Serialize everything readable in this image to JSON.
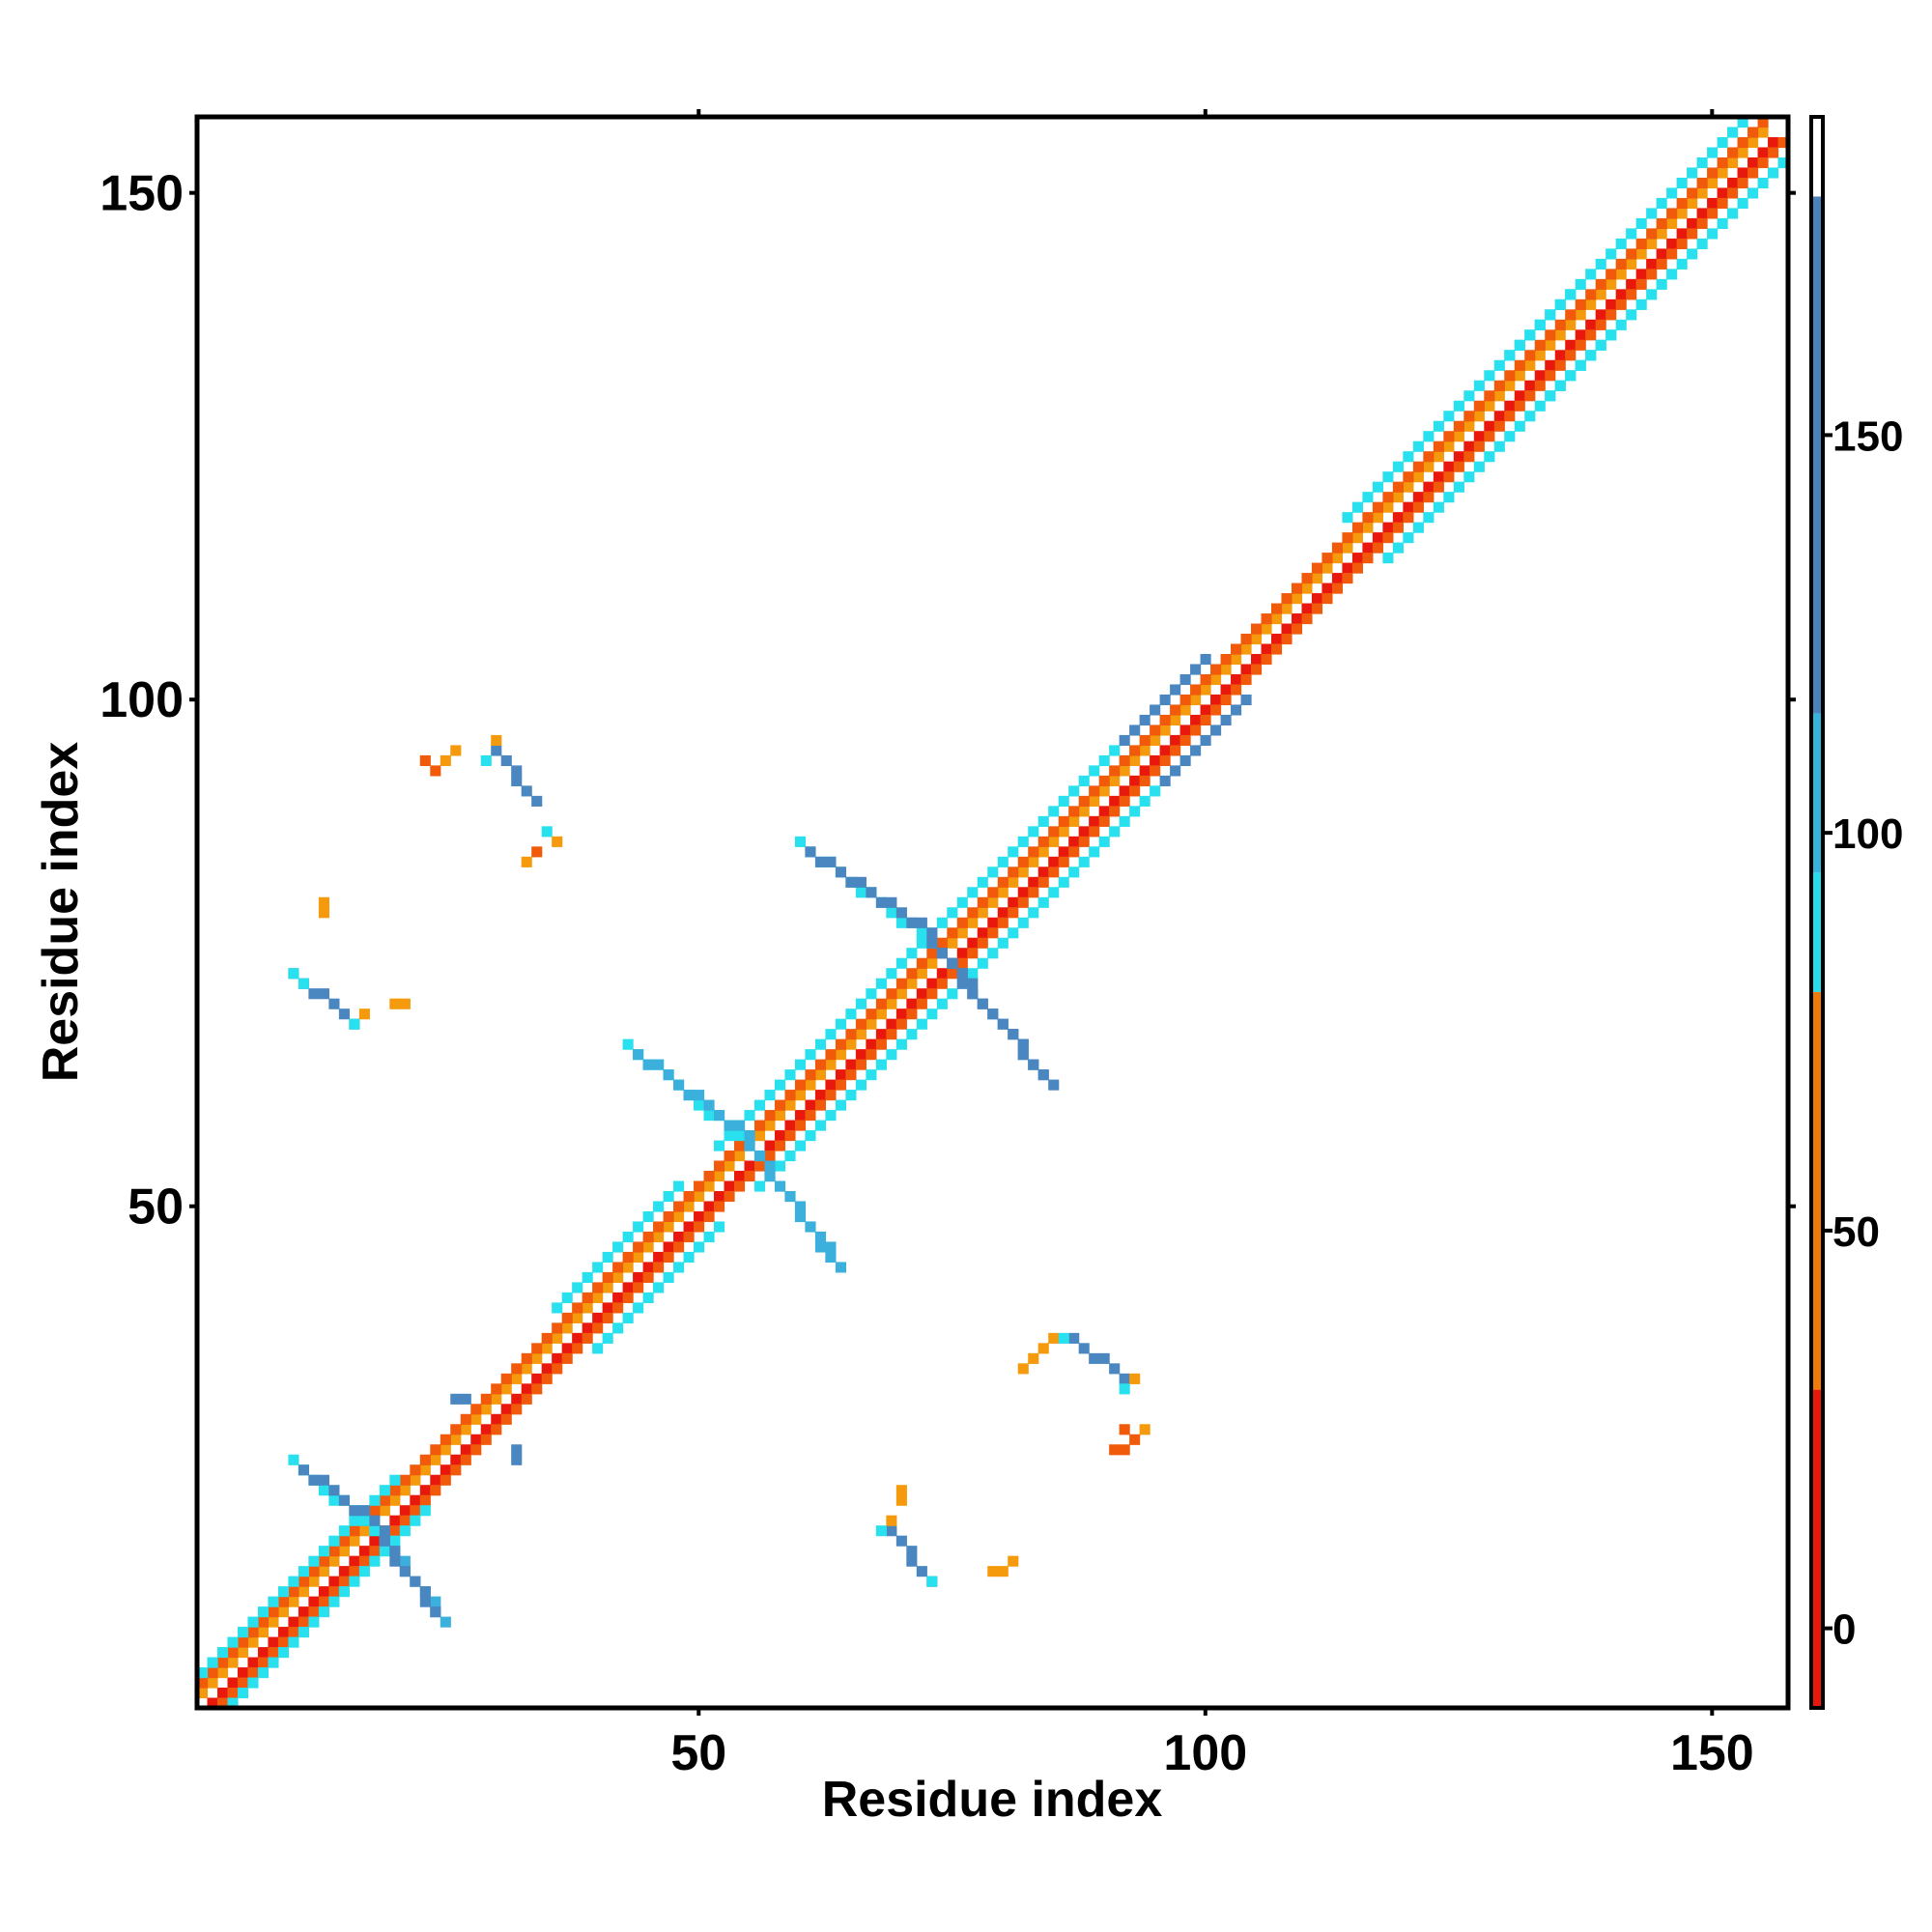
{
  "chart_data": {
    "type": "heatmap",
    "title": "",
    "xlabel": "Residue index",
    "ylabel": "Residue index",
    "xlim": [
      1,
      157
    ],
    "ylim": [
      1,
      157
    ],
    "x_ticks": [
      50,
      100,
      150
    ],
    "y_ticks": [
      50,
      100,
      150
    ],
    "grid": false,
    "legend": "colorbar-right",
    "colorbar": {
      "ticks": [
        0,
        50,
        100,
        150
      ],
      "range": [
        -10,
        190
      ],
      "stops": [
        {
          "from": -10,
          "to": 30,
          "color": "#e8180c"
        },
        {
          "from": 30,
          "to": 80,
          "color": "#f07a0a"
        },
        {
          "from": 80,
          "to": 95,
          "color": "#28dcec"
        },
        {
          "from": 95,
          "to": 115,
          "color": "#36b4dc"
        },
        {
          "from": 115,
          "to": 180,
          "color": "#4a82bc"
        },
        {
          "from": 180,
          "to": 190,
          "color": "#ffffff"
        }
      ]
    },
    "colors": {
      "red": "#e8180c",
      "orange_red": "#f05a0a",
      "orange": "#f59a0c",
      "cyan": "#28e0ee",
      "light_blue": "#3cb0dc",
      "steel_blue": "#4a86c0"
    },
    "segments": [
      {
        "from": [
          2,
          1
        ],
        "to": [
          156,
          155
        ],
        "color": "red"
      },
      {
        "from": [
          1,
          2
        ],
        "to": [
          155,
          156
        ],
        "color": "orange"
      },
      {
        "from": [
          3,
          1
        ],
        "to": [
          157,
          155
        ],
        "color": "orange_red"
      },
      {
        "from": [
          1,
          3
        ],
        "to": [
          155,
          157
        ],
        "color": "orange_red"
      },
      {
        "from": [
          4,
          1
        ],
        "to": [
          23,
          20
        ],
        "color": "cyan"
      },
      {
        "from": [
          1,
          4
        ],
        "to": [
          20,
          23
        ],
        "color": "cyan"
      },
      {
        "from": [
          40,
          36
        ],
        "to": [
          52,
          48
        ],
        "color": "cyan"
      },
      {
        "from": [
          36,
          40
        ],
        "to": [
          48,
          52
        ],
        "color": "cyan"
      },
      {
        "from": [
          56,
          52
        ],
        "to": [
          95,
          91
        ],
        "color": "cyan"
      },
      {
        "from": [
          52,
          56
        ],
        "to": [
          91,
          95
        ],
        "color": "cyan"
      },
      {
        "from": [
          96,
          92
        ],
        "to": [
          104,
          100
        ],
        "color": "steel_blue"
      },
      {
        "from": [
          92,
          96
        ],
        "to": [
          100,
          104
        ],
        "color": "steel_blue"
      },
      {
        "from": [
          118,
          114
        ],
        "to": [
          140,
          136
        ],
        "color": "cyan"
      },
      {
        "from": [
          114,
          118
        ],
        "to": [
          136,
          140
        ],
        "color": "cyan"
      },
      {
        "from": [
          134,
          130
        ],
        "to": [
          157,
          153
        ],
        "color": "cyan"
      },
      {
        "from": [
          130,
          134
        ],
        "to": [
          153,
          157
        ],
        "color": "cyan"
      },
      {
        "from": [
          10,
          25
        ],
        "to": [
          19,
          17
        ],
        "color": "cyan"
      },
      {
        "from": [
          19,
          17
        ],
        "to": [
          25,
          9
        ],
        "color": "light_blue"
      },
      {
        "from": [
          11,
          24
        ],
        "to": [
          19,
          18
        ],
        "color": "steel_blue"
      },
      {
        "from": [
          19,
          17
        ],
        "to": [
          24,
          10
        ],
        "color": "steel_blue"
      },
      {
        "from": [
          43,
          66
        ],
        "to": [
          55,
          56
        ],
        "color": "cyan"
      },
      {
        "from": [
          55,
          56
        ],
        "to": [
          64,
          44
        ],
        "color": "light_blue"
      },
      {
        "from": [
          44,
          65
        ],
        "to": [
          55,
          57
        ],
        "color": "light_blue"
      },
      {
        "from": [
          56,
          55
        ],
        "to": [
          63,
          45
        ],
        "color": "light_blue"
      },
      {
        "from": [
          60,
          86
        ],
        "to": [
          73,
          76
        ],
        "color": "cyan"
      },
      {
        "from": [
          73,
          76
        ],
        "to": [
          85,
          62
        ],
        "color": "steel_blue"
      },
      {
        "from": [
          61,
          85
        ],
        "to": [
          73,
          77
        ],
        "color": "steel_blue"
      },
      {
        "from": [
          74,
          75
        ],
        "to": [
          84,
          63
        ],
        "color": "steel_blue"
      },
      {
        "from": [
          10,
          73
        ],
        "to": [
          16,
          68
        ],
        "color": "steel_blue"
      },
      {
        "from": [
          69,
          18
        ],
        "to": [
          73,
          13
        ],
        "color": "steel_blue"
      },
      {
        "from": [
          30,
          95
        ],
        "to": [
          34,
          90
        ],
        "color": "steel_blue"
      },
      {
        "from": [
          87,
          37
        ],
        "to": [
          92,
          33
        ],
        "color": "steel_blue"
      }
    ],
    "cells": [
      {
        "x": 10,
        "y": 73,
        "color": "cyan"
      },
      {
        "x": 11,
        "y": 72,
        "color": "cyan"
      },
      {
        "x": 16,
        "y": 68,
        "color": "cyan"
      },
      {
        "x": 17,
        "y": 69,
        "color": "orange"
      },
      {
        "x": 13,
        "y": 79,
        "color": "orange"
      },
      {
        "x": 13,
        "y": 80,
        "color": "orange"
      },
      {
        "x": 20,
        "y": 70,
        "color": "orange"
      },
      {
        "x": 21,
        "y": 70,
        "color": "orange"
      },
      {
        "x": 23,
        "y": 94,
        "color": "orange_red"
      },
      {
        "x": 24,
        "y": 93,
        "color": "orange_red"
      },
      {
        "x": 25,
        "y": 94,
        "color": "orange"
      },
      {
        "x": 26,
        "y": 95,
        "color": "orange"
      },
      {
        "x": 30,
        "y": 96,
        "color": "orange"
      },
      {
        "x": 29,
        "y": 94,
        "color": "cyan"
      },
      {
        "x": 35,
        "y": 87,
        "color": "cyan"
      },
      {
        "x": 36,
        "y": 86,
        "color": "orange"
      },
      {
        "x": 34,
        "y": 85,
        "color": "orange_red"
      },
      {
        "x": 33,
        "y": 84,
        "color": "orange"
      },
      {
        "x": 26,
        "y": 31,
        "color": "steel_blue"
      },
      {
        "x": 27,
        "y": 31,
        "color": "steel_blue"
      },
      {
        "x": 32,
        "y": 25,
        "color": "steel_blue"
      },
      {
        "x": 32,
        "y": 26,
        "color": "steel_blue"
      },
      {
        "x": 68,
        "y": 18,
        "color": "cyan"
      },
      {
        "x": 69,
        "y": 19,
        "color": "orange"
      },
      {
        "x": 73,
        "y": 13,
        "color": "cyan"
      },
      {
        "x": 70,
        "y": 21,
        "color": "orange"
      },
      {
        "x": 70,
        "y": 22,
        "color": "orange"
      },
      {
        "x": 79,
        "y": 14,
        "color": "orange"
      },
      {
        "x": 80,
        "y": 14,
        "color": "orange"
      },
      {
        "x": 81,
        "y": 15,
        "color": "orange"
      },
      {
        "x": 84,
        "y": 36,
        "color": "orange"
      },
      {
        "x": 85,
        "y": 37,
        "color": "orange"
      },
      {
        "x": 86,
        "y": 37,
        "color": "cyan"
      },
      {
        "x": 83,
        "y": 35,
        "color": "orange"
      },
      {
        "x": 82,
        "y": 34,
        "color": "orange"
      },
      {
        "x": 92,
        "y": 32,
        "color": "cyan"
      },
      {
        "x": 93,
        "y": 33,
        "color": "orange"
      },
      {
        "x": 92,
        "y": 28,
        "color": "orange_red"
      },
      {
        "x": 93,
        "y": 27,
        "color": "orange_red"
      },
      {
        "x": 91,
        "y": 26,
        "color": "orange_red"
      },
      {
        "x": 92,
        "y": 26,
        "color": "orange_red"
      },
      {
        "x": 94,
        "y": 28,
        "color": "orange"
      }
    ]
  }
}
